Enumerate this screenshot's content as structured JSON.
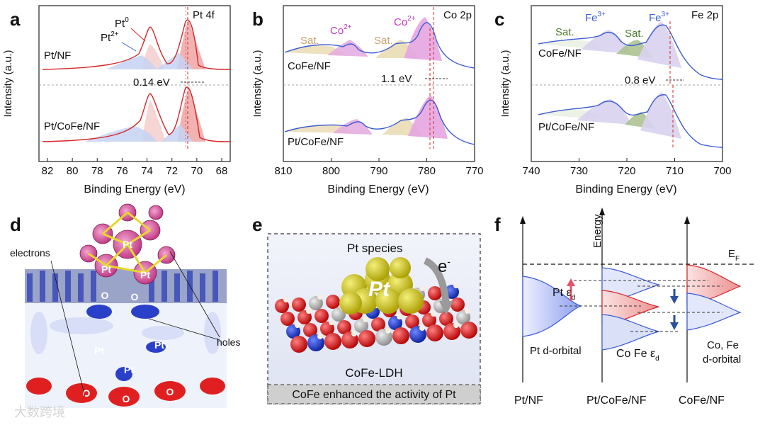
{
  "panel_labels": [
    "a",
    "b",
    "c",
    "d",
    "e",
    "f"
  ],
  "xps": {
    "ylabel": "Intensity (a.u.)",
    "xlabel": "Binding Energy (eV)",
    "a": {
      "region": "Pt 4f",
      "top_sample": "Pt/NF",
      "bottom_sample": "Pt/CoFe/NF",
      "shift": "0.14 eV",
      "peak_pt0": "Pt",
      "peak_pt0_sup": "0",
      "peak_pt2": "Pt",
      "peak_pt2_sup": "2+",
      "ticks": [
        "82",
        "80",
        "78",
        "76",
        "74",
        "72",
        "70",
        "68"
      ]
    },
    "b": {
      "region": "Co 2p",
      "top_sample": "CoFe/NF",
      "bottom_sample": "Pt/CoFe/NF",
      "shift": "1.1 eV",
      "sat1": "Sat.",
      "sat2": "Sat.",
      "co1": "Co",
      "co1_sup": "2+",
      "co2": "Co",
      "co2_sup": "2+",
      "ticks": [
        "810",
        "800",
        "790",
        "780",
        "770"
      ]
    },
    "c": {
      "region": "Fe 2p",
      "top_sample": "CoFe/NF",
      "bottom_sample": "Pt/CoFe/NF",
      "shift": "0.8 eV",
      "sat1": "Sat.",
      "sat2": "Sat.",
      "fe1": "Fe",
      "fe1_sup": "3+",
      "fe2": "Fe",
      "fe2_sup": "3+",
      "ticks": [
        "740",
        "730",
        "720",
        "710",
        "700"
      ]
    }
  },
  "d": {
    "electrons": "electrons",
    "holes": "holes",
    "pt": "Pt",
    "o": "O"
  },
  "e": {
    "pt_species": "Pt species",
    "pt": "Pt",
    "electron": "e",
    "electron_sup": "-",
    "support": "CoFe-LDH",
    "caption": "CoFe enhanced the activity of Pt"
  },
  "f": {
    "energy": "Energy",
    "ef": "E",
    "ef_sub": "F",
    "pt_eps": "Pt ε",
    "pt_eps_sub": "d",
    "pt_d_orbital": "Pt d-orbital",
    "cofe_eps": "Co Fe ε",
    "cofe_eps_sub": "d",
    "cofe_d_orbital_1": "Co, Fe",
    "cofe_d_orbital_2": "d-orbital",
    "label_pt_nf": "Pt/NF",
    "label_pt_cofe_nf": "Pt/CoFe/NF",
    "label_cofe_nf": "CoFe/NF"
  },
  "watermark": "大数跨境",
  "colors": {
    "red": "#d62728",
    "blue": "#3b5bd6",
    "magenta": "#c03ac0",
    "tan": "#c9a46a",
    "green": "#4e7a2e",
    "navy": "#1f3f8f"
  }
}
